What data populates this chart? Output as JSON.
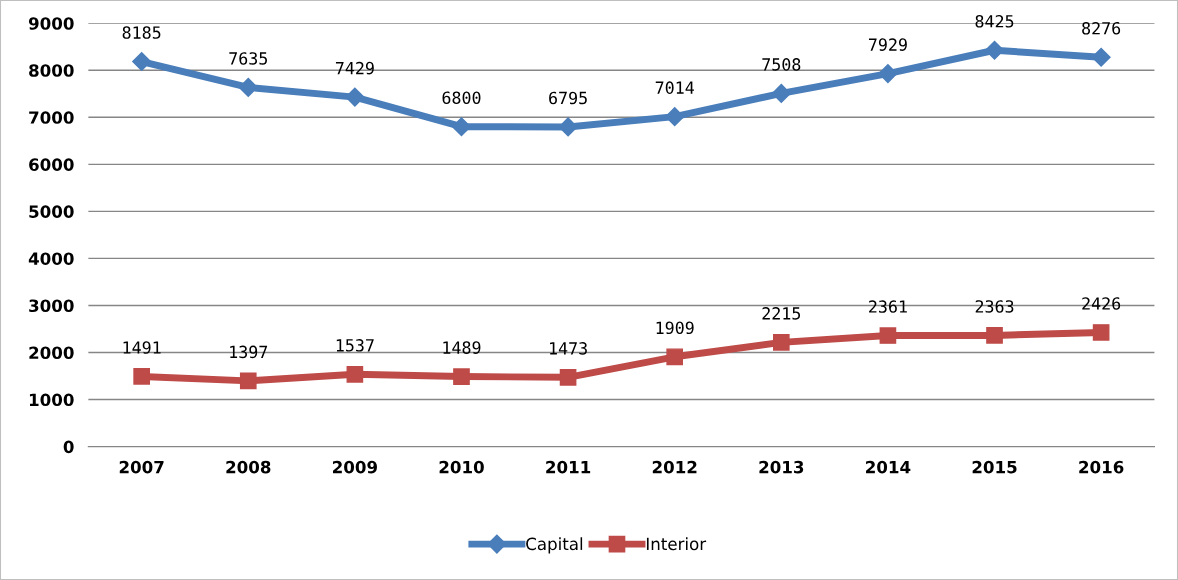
{
  "chart_data": {
    "type": "line",
    "categories": [
      "2007",
      "2008",
      "2009",
      "2010",
      "2011",
      "2012",
      "2013",
      "2014",
      "2015",
      "2016"
    ],
    "series": [
      {
        "name": "Capital",
        "color": "#4a7ebb",
        "marker": "diamond",
        "values": [
          8185,
          7635,
          7429,
          6800,
          6795,
          7014,
          7508,
          7929,
          8425,
          8276
        ]
      },
      {
        "name": "Interior",
        "color": "#be4b48",
        "marker": "square",
        "values": [
          1491,
          1397,
          1537,
          1489,
          1473,
          1909,
          2215,
          2361,
          2363,
          2426
        ]
      }
    ],
    "ylim": [
      0,
      9000
    ],
    "yticks": [
      0,
      1000,
      2000,
      3000,
      4000,
      5000,
      6000,
      7000,
      8000,
      9000
    ],
    "grid": "y",
    "legend": "bottom",
    "data_labels": true,
    "line_style": "solid"
  }
}
